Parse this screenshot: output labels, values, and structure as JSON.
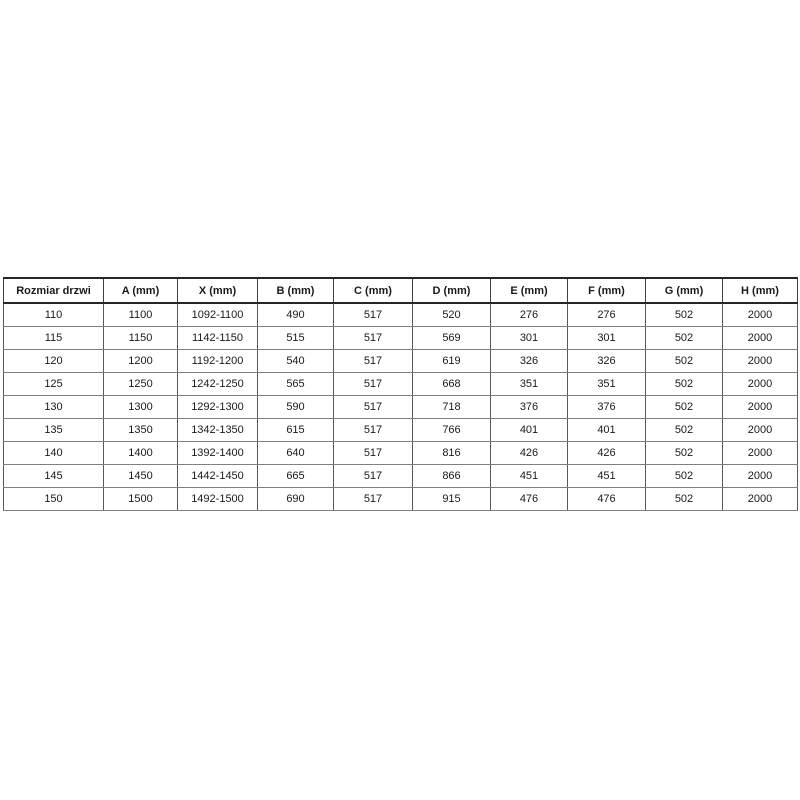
{
  "page": {
    "background_color": "#ffffff",
    "text_color": "#1a1a1a",
    "border_heavy_color": "#262626",
    "border_light_color": "#7f7f7f"
  },
  "table": {
    "title": "Rozmiar drzwi",
    "headers": [
      "Rozmiar drzwi",
      "A (mm)",
      "X (mm)",
      "B (mm)",
      "C (mm)",
      "D (mm)",
      "E (mm)",
      "F (mm)",
      "G (mm)",
      "H (mm)"
    ],
    "rows": [
      [
        "110",
        "1100",
        "1092-1100",
        "490",
        "517",
        "520",
        "276",
        "276",
        "502",
        "2000"
      ],
      [
        "115",
        "1150",
        "1142-1150",
        "515",
        "517",
        "569",
        "301",
        "301",
        "502",
        "2000"
      ],
      [
        "120",
        "1200",
        "1192-1200",
        "540",
        "517",
        "619",
        "326",
        "326",
        "502",
        "2000"
      ],
      [
        "125",
        "1250",
        "1242-1250",
        "565",
        "517",
        "668",
        "351",
        "351",
        "502",
        "2000"
      ],
      [
        "130",
        "1300",
        "1292-1300",
        "590",
        "517",
        "718",
        "376",
        "376",
        "502",
        "2000"
      ],
      [
        "135",
        "1350",
        "1342-1350",
        "615",
        "517",
        "766",
        "401",
        "401",
        "502",
        "2000"
      ],
      [
        "140",
        "1400",
        "1392-1400",
        "640",
        "517",
        "816",
        "426",
        "426",
        "502",
        "2000"
      ],
      [
        "145",
        "1450",
        "1442-1450",
        "665",
        "517",
        "866",
        "451",
        "451",
        "502",
        "2000"
      ],
      [
        "150",
        "1500",
        "1492-1500",
        "690",
        "517",
        "915",
        "476",
        "476",
        "502",
        "2000"
      ]
    ]
  }
}
